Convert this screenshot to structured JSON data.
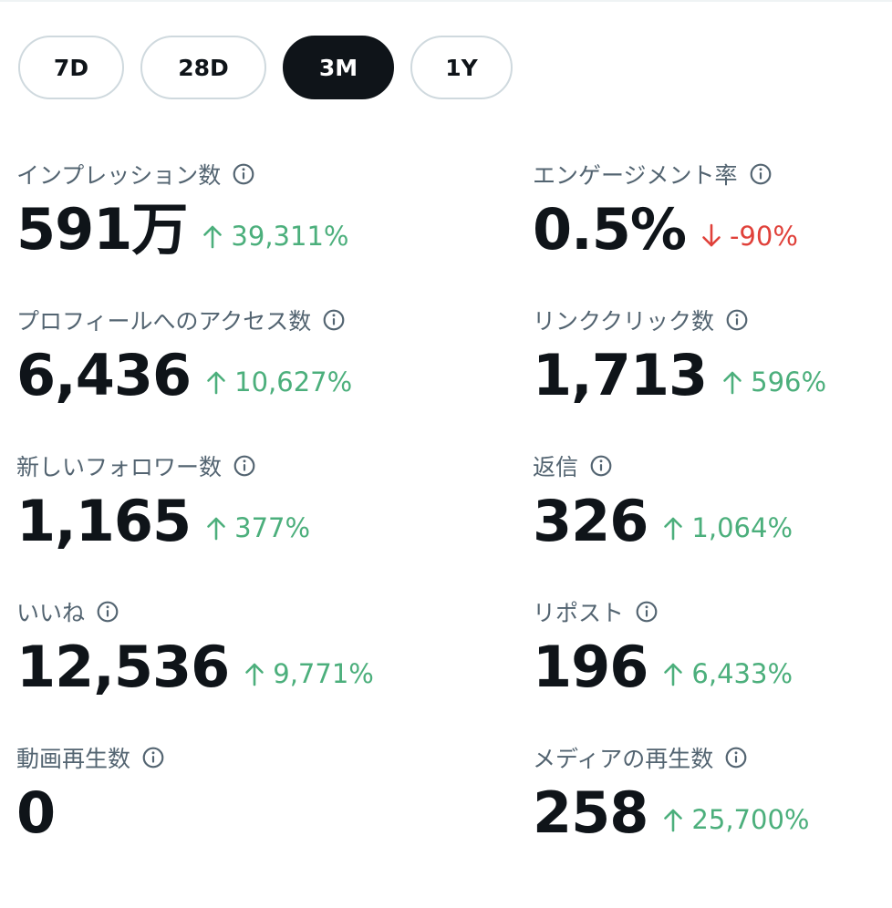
{
  "ranges": [
    {
      "label": "7D",
      "active": false
    },
    {
      "label": "28D",
      "active": false
    },
    {
      "label": "3M",
      "active": true
    },
    {
      "label": "1Y",
      "active": false
    }
  ],
  "metrics": {
    "impressions": {
      "label": "インプレッション数",
      "value": "591万",
      "change": "39,311%",
      "direction": "up"
    },
    "engagement_rate": {
      "label": "エンゲージメント率",
      "value": "0.5%",
      "change": "-90%",
      "direction": "down"
    },
    "profile_visits": {
      "label": "プロフィールへのアクセス数",
      "value": "6,436",
      "change": "10,627%",
      "direction": "up"
    },
    "link_clicks": {
      "label": "リンククリック数",
      "value": "1,713",
      "change": "596%",
      "direction": "up"
    },
    "new_followers": {
      "label": "新しいフォロワー数",
      "value": "1,165",
      "change": "377%",
      "direction": "up"
    },
    "replies": {
      "label": "返信",
      "value": "326",
      "change": "1,064%",
      "direction": "up"
    },
    "likes": {
      "label": "いいね",
      "value": "12,536",
      "change": "9,771%",
      "direction": "up"
    },
    "reposts": {
      "label": "リポスト",
      "value": "196",
      "change": "6,433%",
      "direction": "up"
    },
    "video_views": {
      "label": "動画再生数",
      "value": "0",
      "change": null,
      "direction": null
    },
    "media_views": {
      "label": "メディアの再生数",
      "value": "258",
      "change": "25,700%",
      "direction": "up"
    }
  },
  "colors": {
    "text_primary": "#0f1419",
    "text_secondary": "#536471",
    "positive": "#4caf7c",
    "negative": "#e0413a",
    "pill_border": "#cfd9de"
  }
}
